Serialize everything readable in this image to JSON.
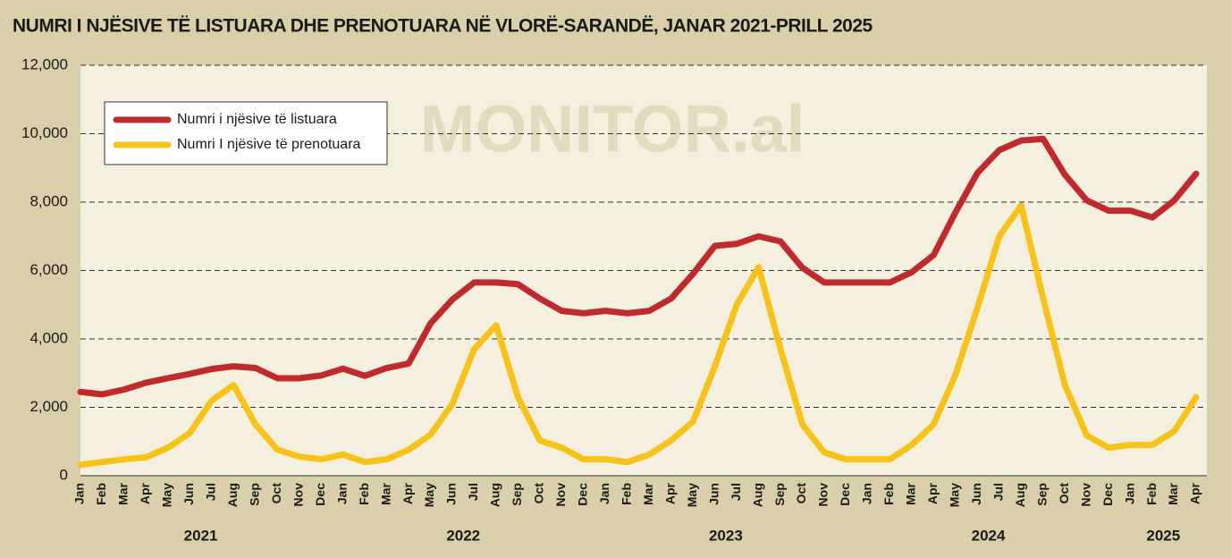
{
  "chart_data": {
    "type": "line",
    "title": "NUMRI I NJËSIVE TË LISTUARA DHE PRENOTUARA NË VLORË-SARANDË, JANAR 2021-PRILL 2025",
    "watermark": "MONITOR.al",
    "categories": [
      "Jan",
      "Feb",
      "Mar",
      "Apr",
      "May",
      "Jun",
      "Jul",
      "Aug",
      "Sep",
      "Oct",
      "Nov",
      "Dec",
      "Jan",
      "Feb",
      "Mar",
      "Apr",
      "May",
      "Jun",
      "Jul",
      "Aug",
      "Sep",
      "Oct",
      "Nov",
      "Dec",
      "Jan",
      "Feb",
      "Mar",
      "Apr",
      "May",
      "Jun",
      "Jul",
      "Aug",
      "Sep",
      "Oct",
      "Nov",
      "Dec",
      "Jan",
      "Feb",
      "Mar",
      "Apr",
      "May",
      "Jun",
      "Jul",
      "Aug",
      "Sep",
      "Oct",
      "Nov",
      "Dec",
      "Jan",
      "Feb",
      "Mar",
      "Apr"
    ],
    "years": [
      "2021",
      "2022",
      "2023",
      "2024",
      "2025"
    ],
    "series": [
      {
        "name": "Numri i njësive të listuara",
        "color": "#bf2a2e",
        "values": [
          2450,
          2380,
          2520,
          2720,
          2850,
          2980,
          3120,
          3200,
          3150,
          2850,
          2850,
          2930,
          3130,
          2920,
          3150,
          3280,
          4450,
          5150,
          5650,
          5650,
          5600,
          5180,
          4820,
          4750,
          4820,
          4750,
          4820,
          5180,
          5900,
          6720,
          6780,
          7000,
          6850,
          6080,
          5650,
          5650,
          5650,
          5650,
          5950,
          6450,
          7700,
          8850,
          9520,
          9800,
          9850,
          8800,
          8050,
          7750,
          7750,
          7550,
          8050,
          8830
        ]
      },
      {
        "name": "Numri I njësive të prenotuara",
        "color": "#f7c31b",
        "values": [
          320,
          400,
          480,
          540,
          820,
          1250,
          2200,
          2650,
          1500,
          760,
          560,
          480,
          620,
          400,
          480,
          760,
          1200,
          2100,
          3700,
          4400,
          2300,
          1030,
          820,
          480,
          480,
          400,
          620,
          1030,
          1580,
          3200,
          5000,
          6100,
          3700,
          1500,
          680,
          480,
          480,
          480,
          900,
          1500,
          2950,
          4900,
          7000,
          7900,
          5200,
          2650,
          1180,
          820,
          900,
          900,
          1300,
          2300
        ]
      }
    ],
    "ylim": [
      0,
      12000
    ],
    "yticks": [
      0,
      {
        "value": 2000,
        "label": "2,000"
      },
      {
        "value": 4000,
        "label": "4,000"
      },
      {
        "value": 6000,
        "label": "6,000"
      },
      {
        "value": 8000,
        "label": "8,000"
      },
      {
        "value": 10000,
        "label": "10,000"
      },
      {
        "value": 12000,
        "label": "12,000"
      }
    ],
    "grid": true
  }
}
